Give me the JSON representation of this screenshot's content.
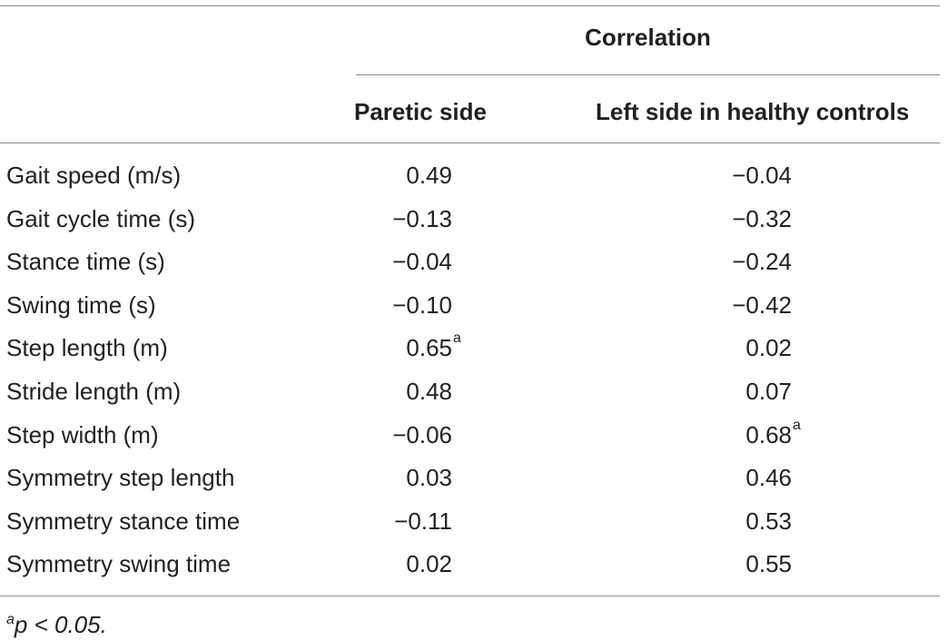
{
  "header": {
    "group_title": "Correlation",
    "columns": [
      "Paretic side",
      "Left side in healthy controls"
    ]
  },
  "rows": [
    {
      "label": "Gait speed (m/s)",
      "paretic": "0.49",
      "paretic_mark": "",
      "control": "−0.04",
      "control_mark": ""
    },
    {
      "label": "Gait cycle time (s)",
      "paretic": "−0.13",
      "paretic_mark": "",
      "control": "−0.32",
      "control_mark": ""
    },
    {
      "label": "Stance time (s)",
      "paretic": "−0.04",
      "paretic_mark": "",
      "control": "−0.24",
      "control_mark": ""
    },
    {
      "label": "Swing time (s)",
      "paretic": "−0.10",
      "paretic_mark": "",
      "control": "−0.42",
      "control_mark": ""
    },
    {
      "label": "Step length (m)",
      "paretic": "0.65",
      "paretic_mark": "a",
      "control": "0.02",
      "control_mark": ""
    },
    {
      "label": "Stride length (m)",
      "paretic": "0.48",
      "paretic_mark": "",
      "control": "0.07",
      "control_mark": ""
    },
    {
      "label": "Step width (m)",
      "paretic": "−0.06",
      "paretic_mark": "",
      "control": "0.68",
      "control_mark": "a"
    },
    {
      "label": "Symmetry step length",
      "paretic": "0.03",
      "paretic_mark": "",
      "control": "0.46",
      "control_mark": ""
    },
    {
      "label": "Symmetry stance time",
      "paretic": "−0.11",
      "paretic_mark": "",
      "control": "0.53",
      "control_mark": ""
    },
    {
      "label": "Symmetry swing time",
      "paretic": "0.02",
      "paretic_mark": "",
      "control": "0.55",
      "control_mark": ""
    }
  ],
  "footnote": {
    "mark": "a",
    "text": "p < 0.05."
  }
}
